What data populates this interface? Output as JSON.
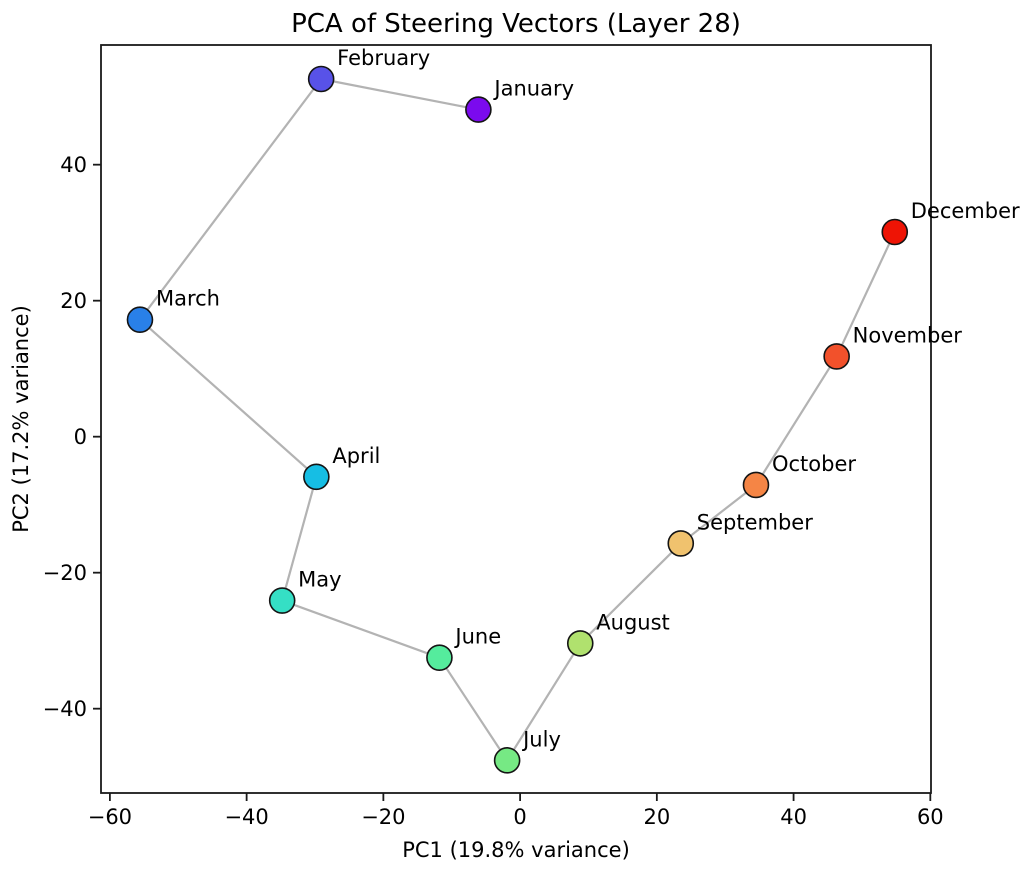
{
  "chart_data": {
    "type": "scatter",
    "title": "PCA of Steering Vectors (Layer 28)",
    "xlabel": "PC1 (19.8% variance)",
    "ylabel": "PC2 (17.2% variance)",
    "xlim": [
      -61.3,
      60.1
    ],
    "ylim": [
      -52.4,
      57.6
    ],
    "x_ticks": [
      -60,
      -40,
      -20,
      0,
      20,
      40,
      60
    ],
    "y_ticks": [
      -40,
      -20,
      0,
      20,
      40
    ],
    "grid": false,
    "legend": "none",
    "line_color": "#b3b3b3",
    "marker_edge_color": "#141414",
    "spine_color": "#1a1a1a",
    "points": [
      {
        "label": "January",
        "x": -6.1,
        "y": 48.1,
        "color": "#7B0AEE"
      },
      {
        "label": "February",
        "x": -29.1,
        "y": 52.6,
        "color": "#5852E8"
      },
      {
        "label": "March",
        "x": -55.6,
        "y": 17.2,
        "color": "#2980E8"
      },
      {
        "label": "April",
        "x": -29.8,
        "y": -5.9,
        "color": "#16BEE4"
      },
      {
        "label": "May",
        "x": -34.8,
        "y": -24.1,
        "color": "#35DFC5"
      },
      {
        "label": "June",
        "x": -11.8,
        "y": -32.5,
        "color": "#55EC9D"
      },
      {
        "label": "July",
        "x": -1.9,
        "y": -47.6,
        "color": "#76E984"
      },
      {
        "label": "August",
        "x": 8.8,
        "y": -30.4,
        "color": "#B0E16E"
      },
      {
        "label": "September",
        "x": 23.5,
        "y": -15.7,
        "color": "#F0C26E"
      },
      {
        "label": "October",
        "x": 34.5,
        "y": -7.1,
        "color": "#F58545"
      },
      {
        "label": "November",
        "x": 46.3,
        "y": 11.8,
        "color": "#F2512B"
      },
      {
        "label": "December",
        "x": 54.8,
        "y": 30.1,
        "color": "#EE1405"
      }
    ]
  }
}
